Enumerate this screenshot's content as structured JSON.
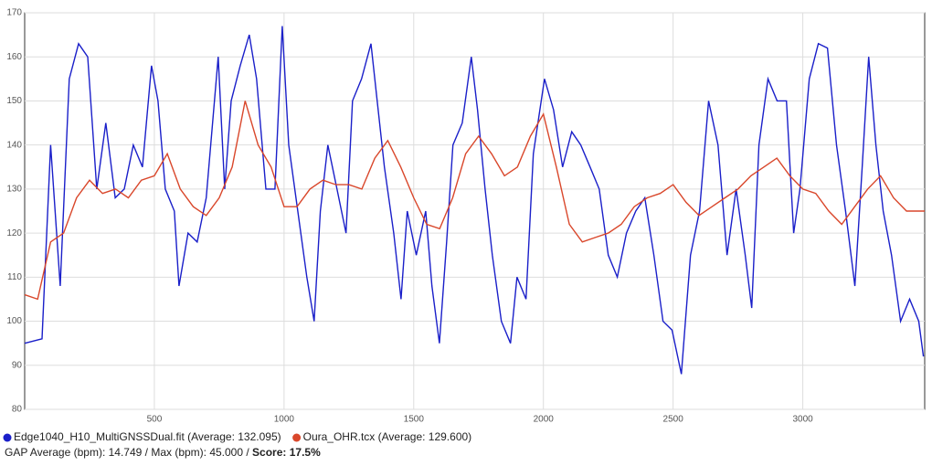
{
  "chart_data": {
    "type": "line",
    "xlim": [
      0,
      3470
    ],
    "ylim": [
      80,
      170
    ],
    "xticks": [
      500,
      1000,
      1500,
      2000,
      2500,
      3000
    ],
    "yticks": [
      80,
      90,
      100,
      110,
      120,
      130,
      140,
      150,
      160,
      170
    ],
    "grid": true,
    "legend": "bottom",
    "series": [
      {
        "name": "Edge1040_H10_MultiGNSSDual.fit (Average: 132.095)",
        "color": "#1a1fc9",
        "x": [
          0,
          67,
          100,
          137,
          172,
          208,
          243,
          278,
          313,
          349,
          384,
          419,
          454,
          489,
          514,
          542,
          577,
          595,
          630,
          665,
          700,
          746,
          771,
          796,
          831,
          866,
          894,
          930,
          965,
          993,
          1018,
          1053,
          1088,
          1116,
          1140,
          1169,
          1204,
          1239,
          1264,
          1299,
          1335,
          1359,
          1387,
          1423,
          1451,
          1475,
          1510,
          1546,
          1570,
          1599,
          1627,
          1651,
          1687,
          1722,
          1746,
          1775,
          1803,
          1838,
          1873,
          1898,
          1933,
          1961,
          2004,
          2039,
          2074,
          2109,
          2144,
          2180,
          2215,
          2250,
          2285,
          2320,
          2356,
          2391,
          2426,
          2461,
          2496,
          2532,
          2567,
          2602,
          2637,
          2673,
          2708,
          2743,
          2778,
          2803,
          2831,
          2866,
          2901,
          2937,
          2965,
          2989,
          3025,
          3060,
          3095,
          3130,
          3165,
          3201,
          3229,
          3254,
          3282,
          3310,
          3342,
          3377,
          3412,
          3447,
          3465
        ],
        "values": [
          95,
          96,
          140,
          108,
          155,
          163,
          160,
          130,
          145,
          128,
          130,
          140,
          135,
          158,
          150,
          130,
          125,
          108,
          120,
          118,
          128,
          160,
          130,
          150,
          158,
          165,
          155,
          130,
          130,
          167,
          140,
          125,
          110,
          100,
          125,
          140,
          130,
          120,
          150,
          155,
          163,
          150,
          135,
          120,
          105,
          125,
          115,
          125,
          108,
          95,
          118,
          140,
          145,
          160,
          148,
          130,
          115,
          100,
          95,
          110,
          105,
          138,
          155,
          148,
          135,
          143,
          140,
          135,
          130,
          115,
          110,
          120,
          125,
          128,
          115,
          100,
          98,
          88,
          115,
          125,
          150,
          140,
          115,
          130,
          115,
          103,
          140,
          155,
          150,
          150,
          120,
          130,
          155,
          163,
          162,
          140,
          125,
          108,
          135,
          160,
          140,
          125,
          115,
          100,
          105,
          100,
          92
        ]
      },
      {
        "name": "Oura_OHR.tcx (Average: 129.600)",
        "color": "#d9472b",
        "x": [
          0,
          50,
          100,
          150,
          200,
          250,
          300,
          350,
          400,
          450,
          500,
          550,
          600,
          650,
          700,
          750,
          800,
          850,
          900,
          950,
          1000,
          1050,
          1100,
          1150,
          1200,
          1250,
          1300,
          1350,
          1400,
          1450,
          1500,
          1550,
          1600,
          1650,
          1700,
          1750,
          1800,
          1850,
          1900,
          1950,
          2000,
          2050,
          2100,
          2150,
          2200,
          2250,
          2300,
          2350,
          2400,
          2450,
          2500,
          2550,
          2600,
          2650,
          2700,
          2750,
          2800,
          2850,
          2900,
          2950,
          3000,
          3050,
          3100,
          3150,
          3200,
          3250,
          3300,
          3350,
          3400,
          3450,
          3470
        ],
        "values": [
          106,
          105,
          118,
          120,
          128,
          132,
          129,
          130,
          128,
          132,
          133,
          138,
          130,
          126,
          124,
          128,
          135,
          150,
          140,
          135,
          126,
          126,
          130,
          132,
          131,
          131,
          130,
          137,
          141,
          135,
          128,
          122,
          121,
          128,
          138,
          142,
          138,
          133,
          135,
          142,
          147,
          135,
          122,
          118,
          119,
          120,
          122,
          126,
          128,
          129,
          131,
          127,
          124,
          126,
          128,
          130,
          133,
          135,
          137,
          133,
          130,
          129,
          125,
          122,
          126,
          130,
          133,
          128,
          125,
          125,
          125
        ]
      }
    ]
  },
  "footer": {
    "stats": "GAP Average (bpm): 14.749 / Max (bpm): 45.000 /",
    "score": "Score: 17.5%"
  }
}
